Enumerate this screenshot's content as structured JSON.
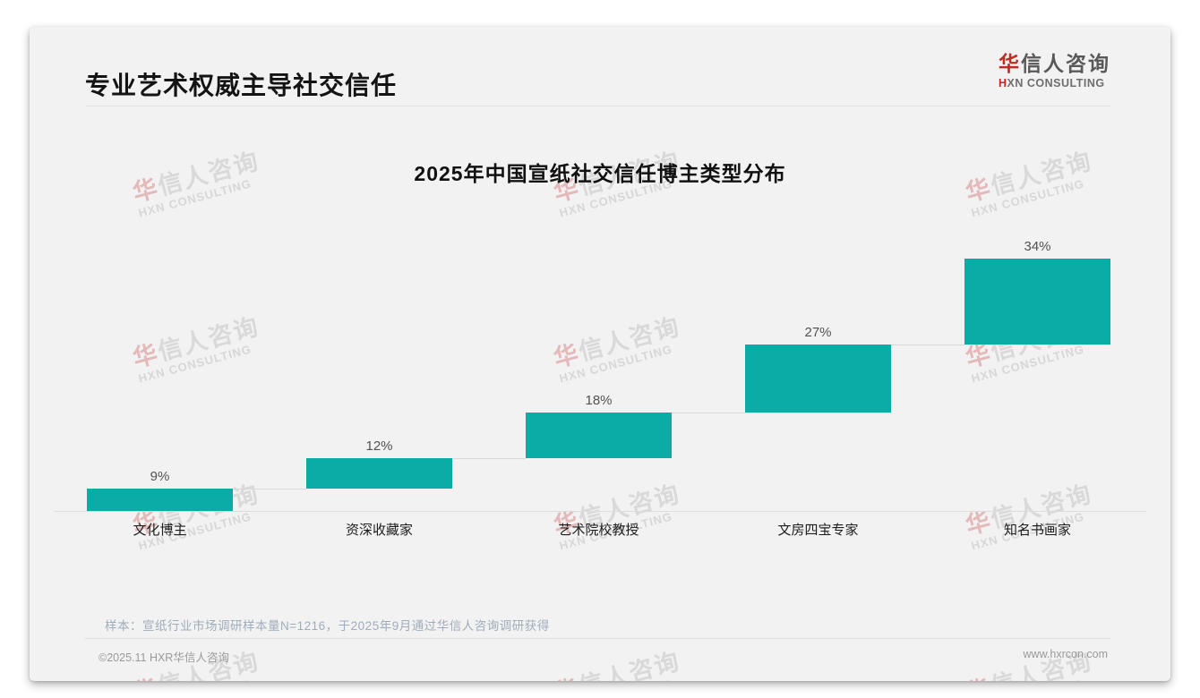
{
  "page": {
    "title": "专业艺术权威主导社交信任",
    "logo": {
      "zh_accent": "华",
      "zh_rest": "信人咨询",
      "en_accent": "H",
      "en_rest": "XN CONSULTING"
    },
    "watermark": {
      "zh_accent": "华",
      "zh_rest": "信人咨询",
      "en": "HXN CONSULTING"
    },
    "note": "样本：宣纸行业市场调研样本量N=1216，于2025年9月通过华信人咨询调研获得",
    "footer": {
      "left": "©2025.11 HXR华信人咨询",
      "right": "www.hxrcon.com"
    }
  },
  "colors": {
    "bar_teal": "#0baca6",
    "brand_red": "#c22a23",
    "card_background": "#f2f2f3"
  },
  "chart_data": {
    "type": "bar",
    "subtype": "waterfall-staircase",
    "title": "2025年中国宣纸社交信任博主类型分布",
    "categories": [
      "文化博主",
      "资深收藏家",
      "艺术院校教授",
      "文房四宝专家",
      "知名书画家"
    ],
    "values": [
      9,
      12,
      18,
      27,
      34
    ],
    "labels": [
      "9%",
      "12%",
      "18%",
      "27%",
      "34%"
    ],
    "unit": "%",
    "ylim": [
      0,
      100
    ],
    "bar_color": "#0baca6",
    "grid": false,
    "legend": "none",
    "notes": "Staircase waterfall: each bar starts at the previous cumulative total; cumulative totals 9, 21, 39, 66, 100 (%). Light gray connector lines join consecutive bars; baseline axis at 0%."
  }
}
